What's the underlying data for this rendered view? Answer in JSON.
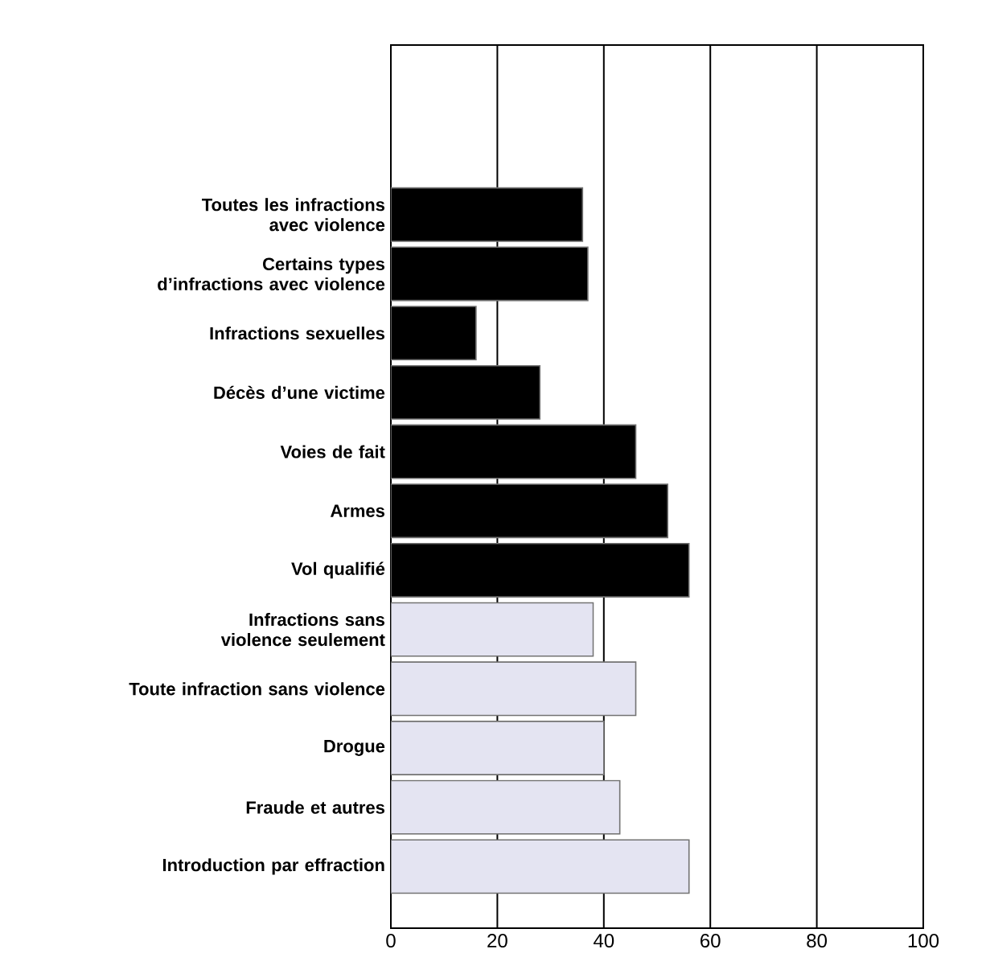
{
  "chart_data": {
    "type": "bar",
    "orientation": "horizontal",
    "categories": [
      "Toutes les infractions avec violence",
      "Certains types d’infractions avec violence",
      "Infractions sexuelles",
      "Décès d’une victime",
      "Voies de fait",
      "Armes",
      "Vol qualifié",
      "Infractions sans violence seulement",
      "Toute infraction sans violence",
      "Drogue",
      "Fraude et autres",
      "Introduction par effraction"
    ],
    "values": [
      36,
      37,
      16,
      28,
      46,
      52,
      56,
      38,
      46,
      40,
      43,
      56
    ],
    "colors": [
      "#000000",
      "#000000",
      "#000000",
      "#000000",
      "#000000",
      "#000000",
      "#000000",
      "#e4e4f2",
      "#e4e4f2",
      "#e4e4f2",
      "#e4e4f2",
      "#e4e4f2"
    ],
    "xlim": [
      0,
      100
    ],
    "xticks": [
      0,
      20,
      40,
      60,
      80,
      100
    ],
    "grid": "x"
  }
}
